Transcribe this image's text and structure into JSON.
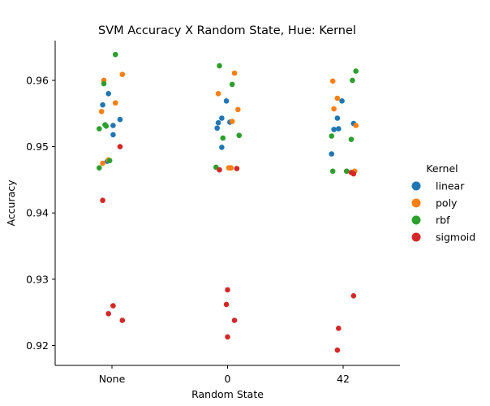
{
  "chart_data": {
    "type": "scatter",
    "title": "SVM Accuracy X Random State, Hue: Kernel",
    "xlabel": "Random State",
    "ylabel": "Accuracy",
    "categories": [
      "None",
      "0",
      "42"
    ],
    "ylim": [
      0.917,
      0.966
    ],
    "yticks": [
      0.92,
      0.93,
      0.94,
      0.95,
      0.96
    ],
    "ytick_labels": [
      "0.92",
      "0.93",
      "0.94",
      "0.95",
      "0.96"
    ],
    "grid": false,
    "legend": {
      "title": "Kernel",
      "placement": "right"
    },
    "series": [
      {
        "name": "linear",
        "color": "#1f77b4",
        "points": [
          [
            "None",
            -0.08,
            0.9563
          ],
          [
            "None",
            -0.03,
            0.958
          ],
          [
            "None",
            0.07,
            0.9541
          ],
          [
            "None",
            0.01,
            0.9532
          ],
          [
            "None",
            0.01,
            0.9518
          ],
          [
            "None",
            -0.04,
            0.9478
          ],
          [
            "0",
            -0.05,
            0.9543
          ],
          [
            "0",
            -0.08,
            0.9536
          ],
          [
            "0",
            -0.09,
            0.9528
          ],
          [
            "0",
            -0.01,
            0.9569
          ],
          [
            "0",
            0.02,
            0.9537
          ],
          [
            "0",
            -0.05,
            0.9499
          ],
          [
            "42",
            -0.01,
            0.9569
          ],
          [
            "42",
            -0.05,
            0.9543
          ],
          [
            "42",
            -0.08,
            0.9526
          ],
          [
            "42",
            -0.04,
            0.9527
          ],
          [
            "42",
            0.09,
            0.9535
          ],
          [
            "42",
            -0.1,
            0.9489
          ]
        ]
      },
      {
        "name": "poly",
        "color": "#ff7f0e",
        "points": [
          [
            "None",
            -0.07,
            0.96
          ],
          [
            "None",
            0.09,
            0.9609
          ],
          [
            "None",
            -0.09,
            0.9553
          ],
          [
            "None",
            0.03,
            0.9566
          ],
          [
            "None",
            -0.08,
            0.9475
          ],
          [
            "None",
            -0.03,
            0.948
          ],
          [
            "0",
            0.06,
            0.9611
          ],
          [
            "0",
            -0.08,
            0.958
          ],
          [
            "0",
            0.09,
            0.9556
          ],
          [
            "0",
            0.04,
            0.9538
          ],
          [
            "0",
            0.01,
            0.9468
          ],
          [
            "0",
            0.03,
            0.9468
          ],
          [
            "42",
            -0.09,
            0.9599
          ],
          [
            "42",
            -0.05,
            0.9573
          ],
          [
            "42",
            -0.08,
            0.9557
          ],
          [
            "42",
            0.11,
            0.9532
          ],
          [
            "42",
            0.03,
            0.9463
          ],
          [
            "42",
            0.1,
            0.9463
          ]
        ]
      },
      {
        "name": "rbf",
        "color": "#2ca02c",
        "points": [
          [
            "None",
            0.03,
            0.9639
          ],
          [
            "None",
            -0.07,
            0.9595
          ],
          [
            "None",
            -0.06,
            0.9533
          ],
          [
            "None",
            -0.11,
            0.9527
          ],
          [
            "None",
            -0.05,
            0.9531
          ],
          [
            "None",
            -0.02,
            0.9479
          ],
          [
            "None",
            -0.11,
            0.9468
          ],
          [
            "0",
            -0.07,
            0.9622
          ],
          [
            "0",
            0.04,
            0.9594
          ],
          [
            "0",
            0.1,
            0.9517
          ],
          [
            "0",
            -0.04,
            0.9513
          ],
          [
            "0",
            -0.1,
            0.9469
          ],
          [
            "42",
            0.11,
            0.9614
          ],
          [
            "42",
            0.08,
            0.96
          ],
          [
            "42",
            -0.1,
            0.9516
          ],
          [
            "42",
            0.07,
            0.9511
          ],
          [
            "42",
            -0.09,
            0.9463
          ],
          [
            "42",
            0.03,
            0.9463
          ]
        ]
      },
      {
        "name": "sigmoid",
        "color": "#d62728",
        "points": [
          [
            "None",
            0.07,
            0.95
          ],
          [
            "None",
            -0.08,
            0.9419
          ],
          [
            "None",
            0.01,
            0.926
          ],
          [
            "None",
            -0.03,
            0.9248
          ],
          [
            "None",
            0.09,
            0.9238
          ],
          [
            "0",
            -0.07,
            0.9465
          ],
          [
            "0",
            0.08,
            0.9467
          ],
          [
            "0",
            0.0,
            0.9284
          ],
          [
            "0",
            -0.01,
            0.9262
          ],
          [
            "0",
            0.06,
            0.9238
          ],
          [
            "0",
            0.0,
            0.9213
          ],
          [
            "42",
            0.09,
            0.9459
          ],
          [
            "42",
            0.07,
            0.9461
          ],
          [
            "42",
            0.09,
            0.9275
          ],
          [
            "42",
            -0.04,
            0.9226
          ],
          [
            "42",
            -0.05,
            0.9193
          ]
        ]
      }
    ]
  }
}
